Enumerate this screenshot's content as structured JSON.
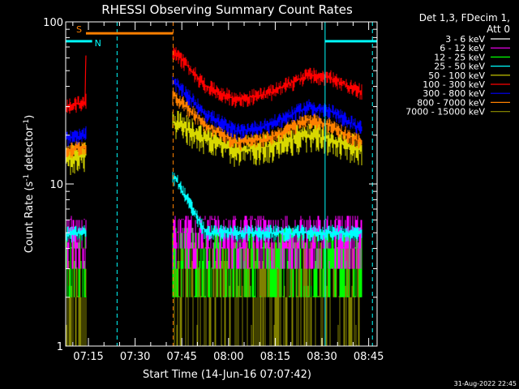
{
  "chart_data": {
    "type": "line",
    "title": "RHESSI Observing Summary Count Rates",
    "xlabel": "Start Time (14-Jun-16 07:07:42)",
    "ylabel_parts": [
      "Count Rate (s",
      "-1",
      " detector",
      "-1",
      ")"
    ],
    "yscale": "log",
    "ylim": [
      1,
      100
    ],
    "xlim_minutes": [
      0,
      100
    ],
    "ytick_labels": [
      {
        "value": 1,
        "label": "1"
      },
      {
        "value": 10,
        "label": "10"
      },
      {
        "value": 100,
        "label": "100"
      }
    ],
    "xtick_labels": [
      {
        "minute": 7.3,
        "label": "07:15"
      },
      {
        "minute": 22.3,
        "label": "07:30"
      },
      {
        "minute": 37.3,
        "label": "07:45"
      },
      {
        "minute": 52.3,
        "label": "08:00"
      },
      {
        "minute": 67.3,
        "label": "08:15"
      },
      {
        "minute": 82.3,
        "label": "08:30"
      },
      {
        "minute": 97.3,
        "label": "08:45"
      }
    ],
    "legend": {
      "position": "right",
      "header": [
        "Det 1,3, FDecim 1,",
        "Att 0"
      ],
      "entries": [
        {
          "label": "3 - 6 keV",
          "color": "#000000"
        },
        {
          "label": "6 - 12 keV",
          "color": "#ff00ff"
        },
        {
          "label": "12 - 25 keV",
          "color": "#00ff00"
        },
        {
          "label": "25 - 50 keV",
          "color": "#00ffff"
        },
        {
          "label": "50 - 100 keV",
          "color": "#d8d800"
        },
        {
          "label": "100 - 300 keV",
          "color": "#ff0000"
        },
        {
          "label": "300 - 800 keV",
          "color": "#0000ff"
        },
        {
          "label": "800 - 7000 keV",
          "color": "#ff8000"
        },
        {
          "label": "7000 - 15000 keV",
          "color": "#808000"
        }
      ]
    },
    "segments": [
      {
        "start_minute": 0,
        "end_minute": 6.5
      },
      {
        "start_minute": 34.5,
        "end_minute": 95
      }
    ],
    "series": [
      {
        "name": "100 - 300 keV",
        "color": "#ff0000",
        "kind": "curve",
        "knots": [
          [
            0,
            30
          ],
          [
            6,
            32
          ],
          [
            35,
            65
          ],
          [
            45,
            40
          ],
          [
            55,
            33
          ],
          [
            65,
            36
          ],
          [
            78,
            47
          ],
          [
            85,
            45
          ],
          [
            95,
            37
          ]
        ]
      },
      {
        "name": "300 - 800 keV",
        "color": "#0000ff",
        "kind": "curve",
        "knots": [
          [
            0,
            19
          ],
          [
            6,
            20
          ],
          [
            35,
            42
          ],
          [
            45,
            27
          ],
          [
            55,
            21
          ],
          [
            65,
            23
          ],
          [
            78,
            30
          ],
          [
            85,
            28
          ],
          [
            95,
            22
          ]
        ]
      },
      {
        "name": "800 - 7000 keV",
        "color": "#ff8000",
        "kind": "curve",
        "knots": [
          [
            0,
            16
          ],
          [
            6,
            17
          ],
          [
            35,
            35
          ],
          [
            45,
            23
          ],
          [
            55,
            18
          ],
          [
            65,
            19
          ],
          [
            78,
            25
          ],
          [
            85,
            23
          ],
          [
            95,
            18
          ]
        ]
      },
      {
        "name": "50 - 100 keV",
        "color": "#d8d800",
        "kind": "curve",
        "knots": [
          [
            0,
            14
          ],
          [
            6,
            15
          ],
          [
            35,
            24
          ],
          [
            45,
            19
          ],
          [
            55,
            16
          ],
          [
            65,
            17
          ],
          [
            78,
            20
          ],
          [
            85,
            19
          ],
          [
            95,
            16
          ]
        ]
      },
      {
        "name": "25 - 50 keV",
        "color": "#00ffff",
        "kind": "curve",
        "knots": [
          [
            0,
            4.9
          ],
          [
            6,
            5
          ],
          [
            35,
            11
          ],
          [
            45,
            5
          ],
          [
            55,
            5
          ],
          [
            65,
            5
          ],
          [
            78,
            5
          ],
          [
            85,
            5
          ],
          [
            95,
            5
          ]
        ]
      },
      {
        "name": "6 - 12 keV",
        "color": "#ff00ff",
        "kind": "band",
        "low": 3,
        "high": 6
      },
      {
        "name": "12 - 25 keV",
        "color": "#00ff00",
        "kind": "band",
        "low": 2,
        "high": 5
      },
      {
        "name": "3 - 6 keV",
        "color": "#000000",
        "kind": "band",
        "low": 1,
        "high": 3
      },
      {
        "name": "7000 - 15000 keV",
        "color": "#808000",
        "kind": "band",
        "low": 1,
        "high": 4
      }
    ],
    "flag_bars": [
      {
        "label": "S",
        "color": "#ff8000",
        "start_minute": 6.5,
        "end_minute": 34.5,
        "level": 85
      },
      {
        "label": "N",
        "color": "#00ffff",
        "start_minute": 0,
        "end_minute": 8.5,
        "level": 76
      },
      {
        "label": "",
        "color": "#00ffff",
        "start_minute": 83.3,
        "end_minute": 100,
        "level": 76
      }
    ],
    "markers": [
      {
        "minute": 16.5,
        "color": "#00ffff",
        "style": "dashed"
      },
      {
        "minute": 34.5,
        "color": "#ff8000",
        "style": "dashed"
      },
      {
        "minute": 83.3,
        "color": "#00ffff",
        "style": "solid"
      },
      {
        "minute": 98.5,
        "color": "#00ffff",
        "style": "dashed"
      }
    ]
  },
  "footer": {
    "timestamp": "31-Aug-2022 22:45"
  }
}
